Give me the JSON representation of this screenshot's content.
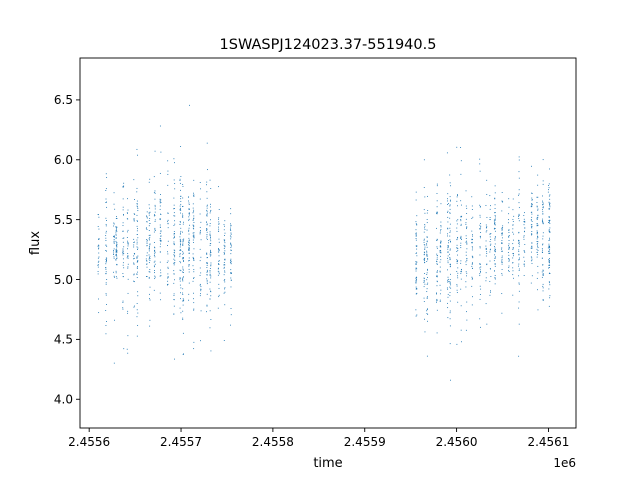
{
  "chart_data": {
    "type": "scatter",
    "title": "1SWASPJ124023.37-551940.5",
    "xlabel": "time",
    "ylabel": "flux",
    "x_offset_label": "1e6",
    "xlim": [
      2.45559,
      2.45613
    ],
    "ylim": [
      3.76,
      6.85
    ],
    "x_ticks": [
      2.4556,
      2.4557,
      2.4558,
      2.4559,
      2.456,
      2.4561
    ],
    "x_tick_labels": [
      "2.4556",
      "2.4557",
      "2.4558",
      "2.4559",
      "2.4560",
      "2.4561"
    ],
    "y_ticks": [
      4.0,
      4.5,
      5.0,
      5.5,
      6.0,
      6.5
    ],
    "y_tick_labels": [
      "4.0",
      "4.5",
      "5.0",
      "5.5",
      "6.0",
      "6.5"
    ],
    "grid": false,
    "marker_color": "#1f77b4",
    "series": [
      {
        "segments": [
          {
            "x_start": 2.45561,
            "x_end": 2.455755
          },
          {
            "x_start": 2.455955,
            "x_end": 2.456107
          }
        ],
        "x": [
          2.45561,
          2.45563,
          2.45565,
          2.45567,
          2.45569,
          2.45571,
          2.45573,
          2.45575,
          2.45596,
          2.45598,
          2.456,
          2.45602,
          2.45604,
          2.45606,
          2.45608,
          2.4561
        ],
        "y": [
          5.2,
          5.3,
          5.25,
          5.35,
          5.3,
          5.28,
          5.25,
          5.2,
          5.15,
          5.25,
          5.3,
          5.22,
          5.35,
          5.3,
          5.38,
          5.35
        ]
      }
    ]
  }
}
